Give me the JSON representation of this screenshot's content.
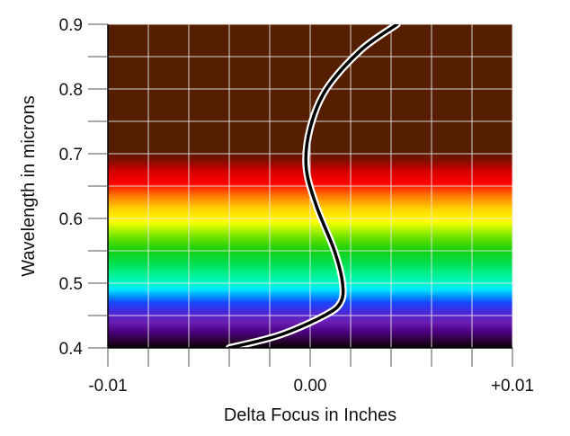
{
  "chart_data": {
    "type": "line",
    "title": "",
    "xlabel": "Delta Focus in Inches",
    "ylabel": "Wavelength in microns",
    "xlim": [
      -0.01,
      0.01
    ],
    "ylim": [
      0.4,
      0.9
    ],
    "x_ticks": [
      {
        "value": -0.01,
        "label": "-0.01"
      },
      {
        "value": 0.0,
        "label": "0.00"
      },
      {
        "value": 0.01,
        "label": "+0.01"
      }
    ],
    "y_ticks": [
      {
        "value": 0.4,
        "label": "0.4"
      },
      {
        "value": 0.5,
        "label": "0.5"
      },
      {
        "value": 0.6,
        "label": "0.6"
      },
      {
        "value": 0.7,
        "label": "0.7"
      },
      {
        "value": 0.8,
        "label": "0.8"
      },
      {
        "value": 0.9,
        "label": "0.9"
      }
    ],
    "x_minor_step": 0.002,
    "y_minor_step": 0.05,
    "grid": true,
    "background": "visible-spectrum gradient by wavelength (violet at 0.40 through red at 0.70, dark brown above)",
    "series": [
      {
        "name": "",
        "color": "#000000",
        "outline_color": "#ffffff",
        "points": [
          {
            "x": -0.004,
            "y": 0.4
          },
          {
            "x": -0.0015,
            "y": 0.42
          },
          {
            "x": 0.0007,
            "y": 0.45
          },
          {
            "x": 0.0015,
            "y": 0.47
          },
          {
            "x": 0.0016,
            "y": 0.5
          },
          {
            "x": 0.0012,
            "y": 0.55
          },
          {
            "x": 0.0003,
            "y": 0.62
          },
          {
            "x": -0.0002,
            "y": 0.68
          },
          {
            "x": 0.0,
            "y": 0.74
          },
          {
            "x": 0.0008,
            "y": 0.8
          },
          {
            "x": 0.0025,
            "y": 0.86
          },
          {
            "x": 0.0043,
            "y": 0.9
          }
        ]
      }
    ]
  }
}
